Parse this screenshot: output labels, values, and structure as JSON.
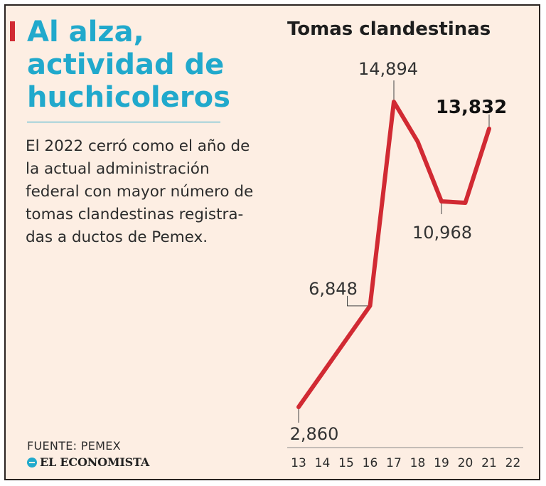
{
  "article": {
    "headline": "Al alza, actividad de huchicoleros",
    "body": "El 2022 cerró como el año de la actual administración federal con mayor número de tomas clandestinas registra-das a ductos de Pemex.",
    "source": "FUENTE: PEMEX",
    "brand": "EL ECONOMISTA"
  },
  "colors": {
    "accent": "#d12a33",
    "headline": "#21a9cc",
    "background": "#fdeee3",
    "line": "#d12a33"
  },
  "chart_data": {
    "type": "line",
    "title": "Tomas clandestinas",
    "categories": [
      "13",
      "14",
      "15",
      "16",
      "17",
      "18",
      "19",
      "20",
      "21",
      "22"
    ],
    "series": [
      {
        "values": [
          2860,
          4190,
          5519,
          6848,
          14894,
          13322,
          10968,
          10910,
          13832,
          null
        ]
      }
    ],
    "data_labels": [
      {
        "index": 0,
        "text": "2,860",
        "emphasis": false
      },
      {
        "index": 3,
        "text": "6,848",
        "emphasis": false
      },
      {
        "index": 4,
        "text": "14,894",
        "emphasis": false
      },
      {
        "index": 6,
        "text": "10,968",
        "emphasis": false
      },
      {
        "index": 8,
        "text": "13,832",
        "emphasis": true
      }
    ],
    "ylim": [
      2000,
      16000
    ],
    "grid": false,
    "legend": "none"
  }
}
